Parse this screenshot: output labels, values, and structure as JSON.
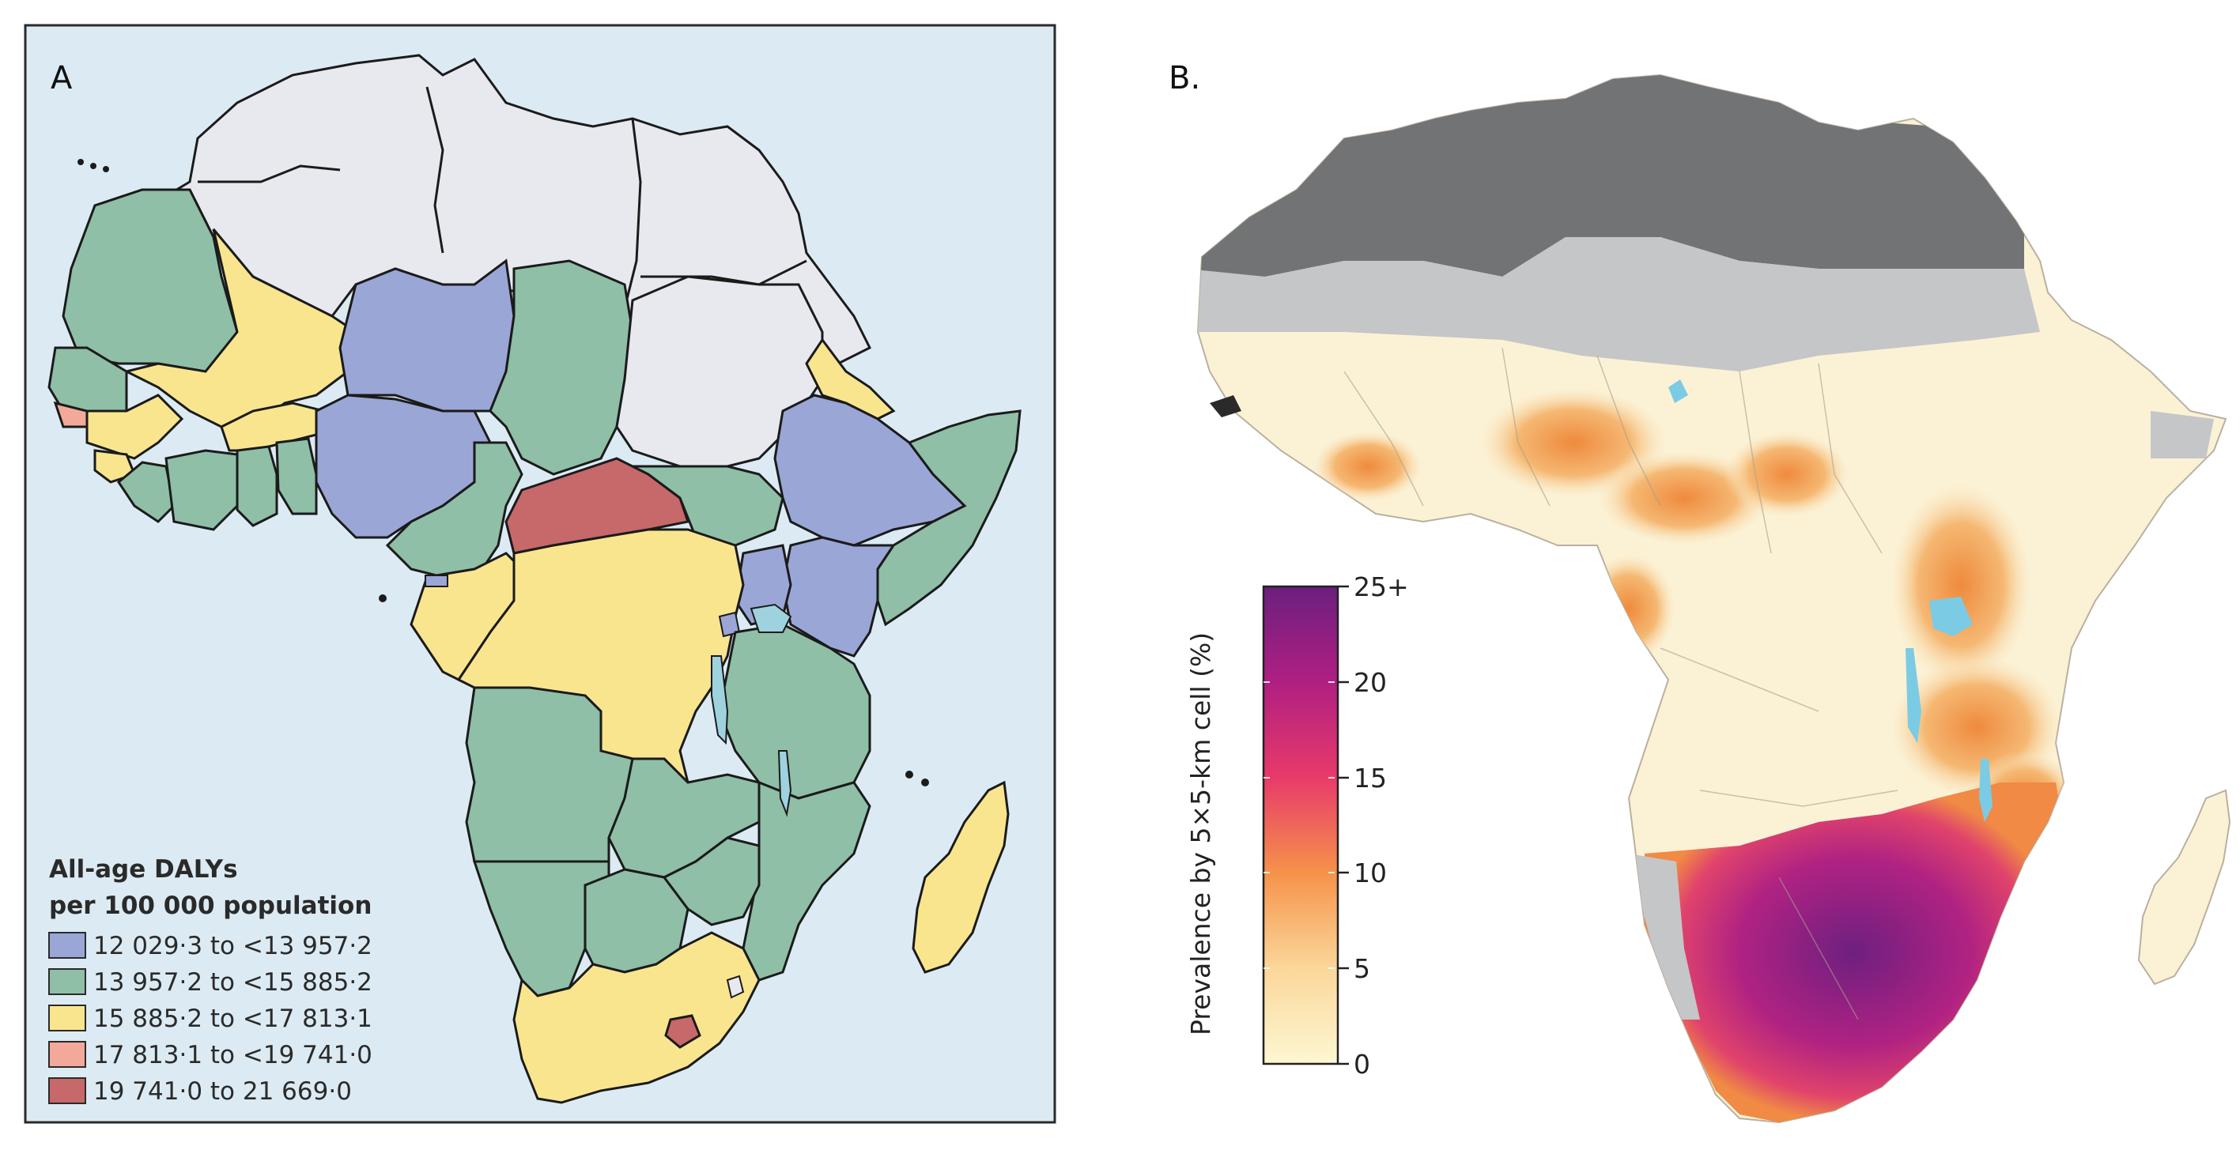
{
  "panel_a": {
    "label": "A",
    "legend": {
      "title_line1": "All-age DALYs",
      "title_line2": "per 100 000 population",
      "items": [
        {
          "label": "12 029·3 to <13 957·2",
          "color": "#9aa6d6"
        },
        {
          "label": "13 957·2 to <15 885·2",
          "color": "#8fbfa6"
        },
        {
          "label": "15 885·2 to <17 813·1",
          "color": "#fae58f"
        },
        {
          "label": "17 813·1 to <19 741·0",
          "color": "#f2a99a"
        },
        {
          "label": "19 741·0 to 21 669·0",
          "color": "#c7686a"
        }
      ]
    },
    "colors": {
      "ocean": "#dcebf3",
      "no_data": "#e8e9ef",
      "water": "#9fd2df",
      "border": "#1b1b1b"
    }
  },
  "panel_b": {
    "label": "B.",
    "colorbar": {
      "title": "Prevalence by 5×5-km cell (%)",
      "ticks": [
        "0",
        "5",
        "10",
        "15",
        "20",
        "25+"
      ],
      "stops": [
        "#fdf7d2",
        "#fbd79a",
        "#f6924a",
        "#e83a6a",
        "#b01f82",
        "#6b1f7e"
      ]
    },
    "colors": {
      "excluded_dark": "#717375",
      "excluded_light": "#c5c6c8",
      "water": "#7ccbe4",
      "low": "#fbf2d6",
      "mid": "#f2b070",
      "high": "#c12d82"
    }
  }
}
